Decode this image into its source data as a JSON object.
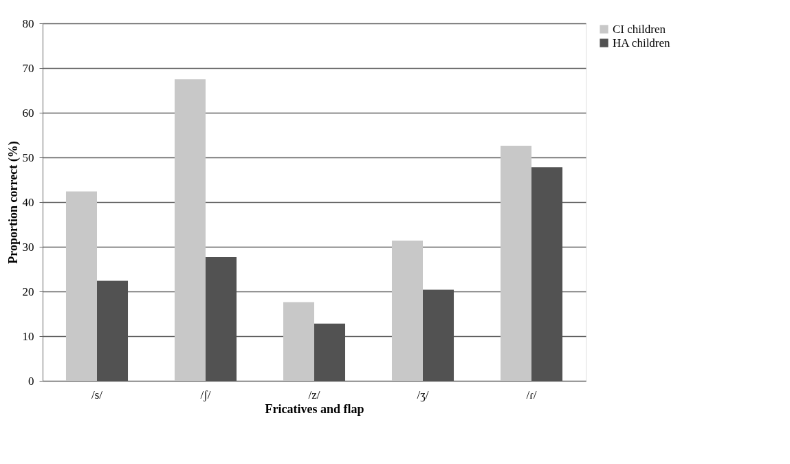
{
  "chart_data": {
    "type": "bar",
    "xlabel": "Fricatives and flap",
    "ylabel": "Proportion correct (%)",
    "categories": [
      "/s/",
      "/ʃ/",
      "/z/",
      "/ʒ/",
      "/ɾ/"
    ],
    "series": [
      {
        "name": "CI children",
        "color": "#c8c8c8",
        "values": [
          42.4,
          67.5,
          17.6,
          31.4,
          52.6
        ]
      },
      {
        "name": "HA children",
        "color": "#525252",
        "values": [
          22.4,
          27.7,
          12.8,
          20.4,
          47.8
        ]
      }
    ],
    "ylim": [
      0,
      80
    ],
    "yticks": [
      0,
      10,
      20,
      30,
      40,
      50,
      60,
      70,
      80
    ],
    "grid": "y",
    "legend": "right"
  }
}
